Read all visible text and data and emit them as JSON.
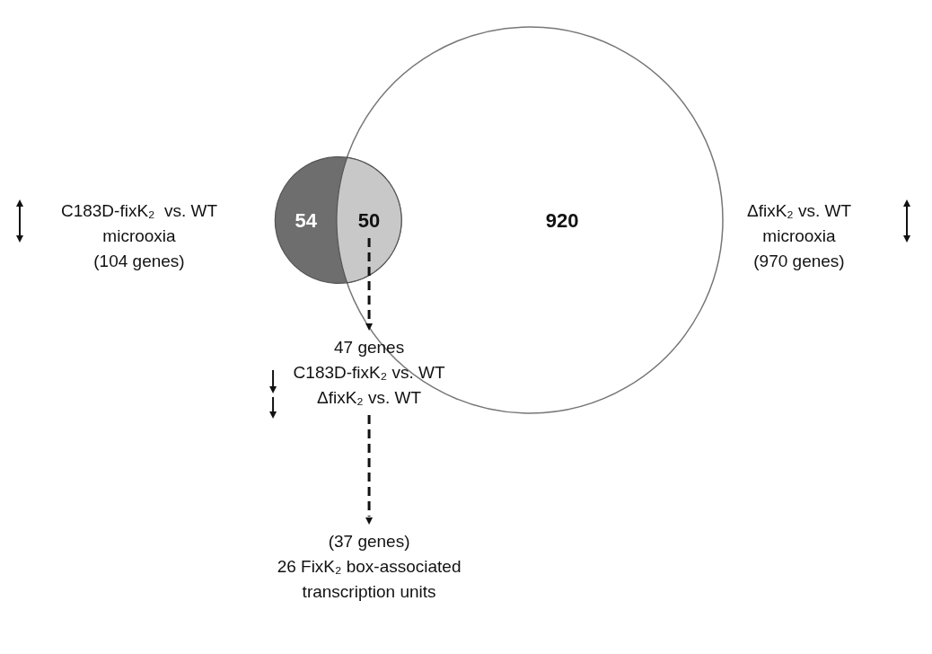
{
  "chart_data": {
    "type": "other",
    "categories": [
      null,
      null,
      null
    ],
    "values": [
      54,
      50,
      920
    ],
    "colors": [
      "#6e6e6e",
      "#c8c8c8",
      "#ffffff"
    ],
    "data_labels": true,
    "annotations": [
      "C183D-fixK₂  vs. WT\nmicrooxia\n(104 genes)",
      "ΔfixK₂ vs. WT\nmicrooxia\n(970 genes)",
      "47 genes\nC183D-fixK₂ vs. WT\nΔfixK₂ vs. WT",
      "(37 genes)\n26 FixK₂ box-associated\ntranscription units"
    ]
  }
}
